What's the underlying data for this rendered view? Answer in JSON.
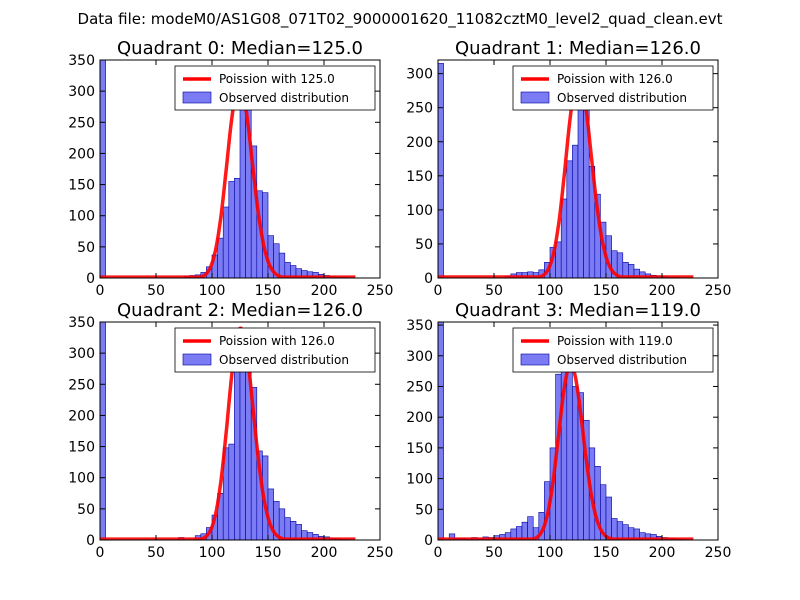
{
  "figure_title": "Data file: modeM0/AS1G08_071T02_9000001620_11082cztM0_level2_quad_clean.evt",
  "colors": {
    "bar_fill": "#7b7bf4",
    "bar_edge": "#0000a0",
    "curve": "#ff0000",
    "axes": "#000000",
    "background": "#ffffff"
  },
  "chart_data": [
    {
      "type": "bar",
      "title": "Quadrant 0: Median=125.0",
      "median": 125.0,
      "xlim": [
        0,
        250
      ],
      "ylim": [
        0,
        350
      ],
      "xticks": [
        0,
        50,
        100,
        150,
        200,
        250
      ],
      "yticks": [
        0,
        50,
        100,
        150,
        200,
        250,
        300,
        350
      ],
      "bin_width": 5,
      "bins_left": [
        0,
        75,
        80,
        85,
        90,
        95,
        100,
        105,
        110,
        115,
        120,
        125,
        130,
        135,
        140,
        145,
        150,
        155,
        160,
        165,
        170,
        175,
        180,
        185,
        190,
        195,
        200,
        205,
        210,
        215,
        220
      ],
      "counts": [
        350,
        3,
        4,
        5,
        9,
        18,
        37,
        64,
        114,
        155,
        160,
        310,
        270,
        212,
        140,
        137,
        68,
        55,
        40,
        25,
        20,
        15,
        12,
        10,
        9,
        6,
        4,
        2,
        1,
        1,
        0
      ],
      "series": [
        {
          "name": "Observed distribution",
          "kind": "histogram"
        },
        {
          "name": "Poission with 125.0",
          "kind": "poisson",
          "mean": 125.0
        }
      ],
      "legend_position": "top-right",
      "legend": [
        "Poission with 125.0",
        "Observed distribution"
      ]
    },
    {
      "type": "bar",
      "title": "Quadrant 1: Median=126.0",
      "median": 126.0,
      "xlim": [
        0,
        250
      ],
      "ylim": [
        0,
        320
      ],
      "xticks": [
        0,
        50,
        100,
        150,
        200,
        250
      ],
      "yticks": [
        0,
        50,
        100,
        150,
        200,
        250,
        300
      ],
      "bin_width": 5,
      "bins_left": [
        0,
        60,
        65,
        70,
        75,
        80,
        85,
        90,
        95,
        100,
        105,
        110,
        115,
        120,
        125,
        130,
        135,
        140,
        145,
        150,
        155,
        160,
        165,
        170,
        175,
        180,
        185,
        190,
        195,
        200,
        205,
        210,
        215,
        220
      ],
      "counts": [
        315,
        3,
        6,
        8,
        8,
        9,
        8,
        12,
        23,
        45,
        53,
        116,
        172,
        195,
        295,
        258,
        164,
        123,
        82,
        62,
        40,
        37,
        23,
        20,
        13,
        9,
        6,
        4,
        3,
        2,
        1,
        1,
        0,
        0
      ],
      "series": [
        {
          "name": "Observed distribution",
          "kind": "histogram"
        },
        {
          "name": "Poission with 126.0",
          "kind": "poisson",
          "mean": 126.0
        }
      ],
      "legend_position": "top-right",
      "legend": [
        "Poission with 126.0",
        "Observed distribution"
      ]
    },
    {
      "type": "bar",
      "title": "Quadrant 2: Median=126.0",
      "median": 126.0,
      "xlim": [
        0,
        250
      ],
      "ylim": [
        0,
        350
      ],
      "xticks": [
        0,
        50,
        100,
        150,
        200,
        250
      ],
      "yticks": [
        0,
        50,
        100,
        150,
        200,
        250,
        300,
        350
      ],
      "bin_width": 5,
      "bins_left": [
        0,
        70,
        85,
        90,
        95,
        100,
        105,
        110,
        115,
        120,
        125,
        130,
        135,
        140,
        145,
        150,
        155,
        160,
        165,
        170,
        175,
        180,
        185,
        190,
        195,
        200,
        205,
        210,
        215,
        220
      ],
      "counts": [
        350,
        4,
        7,
        10,
        20,
        40,
        75,
        148,
        154,
        272,
        275,
        340,
        245,
        143,
        135,
        82,
        62,
        50,
        36,
        30,
        25,
        15,
        12,
        9,
        6,
        5,
        3,
        2,
        1,
        0
      ],
      "series": [
        {
          "name": "Observed distribution",
          "kind": "histogram"
        },
        {
          "name": "Poission with 126.0",
          "kind": "poisson",
          "mean": 126.0
        }
      ],
      "legend_position": "top-right",
      "legend": [
        "Poission with 126.0",
        "Observed distribution"
      ]
    },
    {
      "type": "bar",
      "title": "Quadrant 3: Median=119.0",
      "median": 119.0,
      "xlim": [
        0,
        250
      ],
      "ylim": [
        0,
        355
      ],
      "xticks": [
        0,
        50,
        100,
        150,
        200,
        250
      ],
      "yticks": [
        0,
        50,
        100,
        150,
        200,
        250,
        300,
        350
      ],
      "bin_width": 5,
      "bins_left": [
        0,
        10,
        15,
        20,
        25,
        30,
        35,
        40,
        45,
        50,
        55,
        60,
        65,
        70,
        75,
        80,
        85,
        90,
        95,
        100,
        105,
        110,
        115,
        120,
        125,
        130,
        135,
        140,
        145,
        150,
        155,
        160,
        165,
        170,
        175,
        180,
        185,
        190,
        195,
        200,
        205,
        210,
        215,
        220
      ],
      "counts": [
        355,
        10,
        3,
        3,
        2,
        4,
        2,
        5,
        4,
        7,
        9,
        12,
        18,
        22,
        29,
        38,
        20,
        45,
        95,
        150,
        270,
        278,
        285,
        250,
        240,
        195,
        150,
        120,
        90,
        70,
        35,
        30,
        25,
        20,
        18,
        12,
        10,
        9,
        6,
        4,
        3,
        2,
        1,
        0
      ],
      "series": [
        {
          "name": "Observed distribution",
          "kind": "histogram"
        },
        {
          "name": "Poission with 119.0",
          "kind": "poisson",
          "mean": 119.0
        }
      ],
      "legend_position": "top-right",
      "legend": [
        "Poission with 119.0",
        "Observed distribution"
      ]
    }
  ]
}
